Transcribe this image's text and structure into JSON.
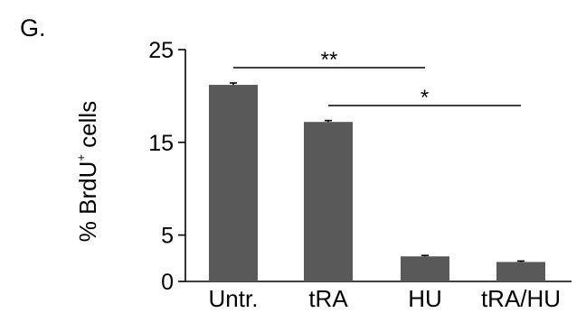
{
  "panel_label": "G.",
  "chart_data": {
    "type": "bar",
    "categories": [
      "Untr.",
      "tRA",
      "HU",
      "tRA/HU"
    ],
    "values": [
      21.2,
      17.2,
      2.7,
      2.1
    ],
    "errors": [
      0.2,
      0.15,
      0.1,
      0.1
    ],
    "ylabel_main": "% BrdU",
    "ylabel_sup": "+",
    "ylabel_tail": " cells",
    "yticks": [
      0,
      5,
      15,
      25
    ],
    "ylim": [
      0,
      25
    ],
    "bar_color": "#595959",
    "significance": [
      {
        "from": "Untr.",
        "to": "HU",
        "label": "**"
      },
      {
        "from": "tRA",
        "to": "tRA/HU",
        "label": "*"
      }
    ]
  }
}
